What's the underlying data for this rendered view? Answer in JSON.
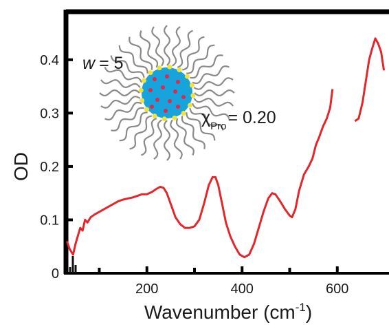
{
  "chart_data": {
    "type": "line",
    "xlabel": "Wavenumber (cm",
    "xlabel_sup": "-1",
    "xlabel_end": ")",
    "ylabel": "OD",
    "xlim": [
      30,
      700
    ],
    "ylim": [
      0,
      0.49
    ],
    "xticks": [
      200,
      400,
      600
    ],
    "yticks": [
      {
        "value": 0,
        "label": "0"
      },
      {
        "value": 0.1,
        "label": "0.1"
      },
      {
        "value": 0.2,
        "label": "0.2"
      },
      {
        "value": 0.3,
        "label": "0.3"
      },
      {
        "value": 0.4,
        "label": "0.4"
      }
    ],
    "colors": {
      "series": "#e3262b",
      "baseline": "#111111",
      "micelle_core": "#17a4dc",
      "head_group": "#f2e23c",
      "solute": "#e0284a",
      "tail": "#8a8a8a"
    },
    "annotations": {
      "w_var": "w",
      "w_eq": "= 5",
      "chi_symbol": "χ",
      "chi_sub": "Pro",
      "chi_eq": "= 0.20"
    },
    "series": [
      {
        "segments": [
          [
            [
              32,
              0.06
            ],
            [
              38,
              0.045
            ],
            [
              45,
              0.035
            ],
            [
              50,
              0.055
            ],
            [
              55,
              0.07
            ],
            [
              60,
              0.085
            ],
            [
              65,
              0.08
            ],
            [
              70,
              0.1
            ],
            [
              75,
              0.095
            ],
            [
              82,
              0.105
            ],
            [
              90,
              0.11
            ],
            [
              100,
              0.115
            ],
            [
              110,
              0.12
            ],
            [
              120,
              0.125
            ],
            [
              130,
              0.13
            ],
            [
              140,
              0.135
            ],
            [
              150,
              0.138
            ],
            [
              160,
              0.14
            ],
            [
              170,
              0.142
            ],
            [
              180,
              0.145
            ],
            [
              190,
              0.148
            ],
            [
              200,
              0.148
            ],
            [
              210,
              0.152
            ],
            [
              220,
              0.158
            ],
            [
              228,
              0.162
            ],
            [
              235,
              0.16
            ],
            [
              242,
              0.15
            ],
            [
              250,
              0.13
            ],
            [
              260,
              0.105
            ],
            [
              270,
              0.092
            ],
            [
              280,
              0.085
            ],
            [
              290,
              0.085
            ],
            [
              300,
              0.088
            ],
            [
              310,
              0.1
            ],
            [
              320,
              0.13
            ],
            [
              330,
              0.165
            ],
            [
              338,
              0.18
            ],
            [
              344,
              0.18
            ],
            [
              350,
              0.165
            ],
            [
              358,
              0.13
            ],
            [
              366,
              0.095
            ],
            [
              375,
              0.07
            ],
            [
              385,
              0.05
            ],
            [
              395,
              0.035
            ],
            [
              405,
              0.03
            ],
            [
              415,
              0.035
            ],
            [
              425,
              0.055
            ],
            [
              435,
              0.085
            ],
            [
              445,
              0.115
            ],
            [
              455,
              0.14
            ],
            [
              463,
              0.15
            ],
            [
              470,
              0.148
            ],
            [
              480,
              0.135
            ],
            [
              490,
              0.12
            ],
            [
              500,
              0.108
            ],
            [
              505,
              0.105
            ],
            [
              512,
              0.12
            ],
            [
              520,
              0.155
            ],
            [
              530,
              0.185
            ],
            [
              540,
              0.2
            ],
            [
              548,
              0.215
            ],
            [
              555,
              0.24
            ],
            [
              562,
              0.255
            ],
            [
              570,
              0.275
            ],
            [
              578,
              0.29
            ],
            [
              585,
              0.31
            ],
            [
              590,
              0.345
            ]
          ],
          [
            [
              637,
              0.285
            ],
            [
              645,
              0.29
            ],
            [
              653,
              0.32
            ],
            [
              660,
              0.36
            ],
            [
              667,
              0.4
            ],
            [
              673,
              0.42
            ],
            [
              680,
              0.44
            ],
            [
              686,
              0.43
            ],
            [
              692,
              0.415
            ],
            [
              698,
              0.38
            ]
          ]
        ]
      }
    ]
  }
}
